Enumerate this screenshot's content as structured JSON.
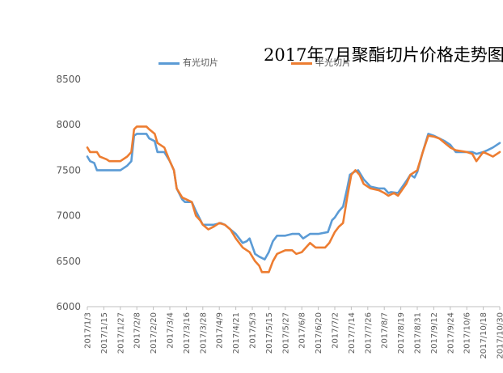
{
  "chart_data": {
    "type": "line",
    "title": "2017年7月聚酯切片价格走势图",
    "ylim": [
      6000,
      8500
    ],
    "yticks": [
      6000,
      6500,
      7000,
      7500,
      8000,
      8500
    ],
    "grid": false,
    "legend_position": "top",
    "x_tick_labels": [
      "2017/1/3",
      "2017/1/15",
      "2017/1/27",
      "2017/2/8",
      "2017/2/20",
      "2017/3/4",
      "2017/3/16",
      "2017/3/28",
      "2017/4/9",
      "2017/4/21",
      "2017/5/3",
      "2017/5/15",
      "2017/5/27",
      "2017/6/8",
      "2017/6/20",
      "2017/7/2",
      "2017/7/14",
      "2017/7/26",
      "2017/8/7",
      "2017/8/19",
      "2017/8/31",
      "2017/9/12",
      "2017/9/24",
      "2017/10/6",
      "2017/10/18",
      "2017/10/30"
    ],
    "series": [
      {
        "name": "有光切片",
        "color": "#5B9BD5",
        "points": [
          [
            "2017/1/3",
            7650
          ],
          [
            "2017/1/5",
            7600
          ],
          [
            "2017/1/8",
            7580
          ],
          [
            "2017/1/10",
            7500
          ],
          [
            "2017/1/27",
            7500
          ],
          [
            "2017/2/1",
            7550
          ],
          [
            "2017/2/4",
            7600
          ],
          [
            "2017/2/6",
            7880
          ],
          [
            "2017/2/8",
            7900
          ],
          [
            "2017/2/15",
            7900
          ],
          [
            "2017/2/17",
            7850
          ],
          [
            "2017/2/21",
            7820
          ],
          [
            "2017/2/23",
            7700
          ],
          [
            "2017/2/28",
            7700
          ],
          [
            "2017/3/4",
            7600
          ],
          [
            "2017/3/7",
            7500
          ],
          [
            "2017/3/9",
            7300
          ],
          [
            "2017/3/13",
            7180
          ],
          [
            "2017/3/15",
            7150
          ],
          [
            "2017/3/20",
            7150
          ],
          [
            "2017/3/23",
            7050
          ],
          [
            "2017/3/28",
            6900
          ],
          [
            "2017/4/1",
            6900
          ],
          [
            "2017/4/5",
            6900
          ],
          [
            "2017/4/10",
            6920
          ],
          [
            "2017/4/13",
            6900
          ],
          [
            "2017/4/21",
            6800
          ],
          [
            "2017/4/26",
            6700
          ],
          [
            "2017/4/29",
            6720
          ],
          [
            "2017/5/1",
            6750
          ],
          [
            "2017/5/5",
            6580
          ],
          [
            "2017/5/8",
            6550
          ],
          [
            "2017/5/12",
            6520
          ],
          [
            "2017/5/15",
            6600
          ],
          [
            "2017/5/18",
            6720
          ],
          [
            "2017/5/21",
            6780
          ],
          [
            "2017/5/27",
            6780
          ],
          [
            "2017/6/1",
            6800
          ],
          [
            "2017/6/6",
            6800
          ],
          [
            "2017/6/9",
            6750
          ],
          [
            "2017/6/14",
            6800
          ],
          [
            "2017/6/20",
            6800
          ],
          [
            "2017/6/27",
            6820
          ],
          [
            "2017/6/30",
            6950
          ],
          [
            "2017/7/2",
            6980
          ],
          [
            "2017/7/5",
            7050
          ],
          [
            "2017/7/8",
            7100
          ],
          [
            "2017/7/11",
            7300
          ],
          [
            "2017/7/13",
            7450
          ],
          [
            "2017/7/16",
            7480
          ],
          [
            "2017/7/19",
            7500
          ],
          [
            "2017/7/23",
            7400
          ],
          [
            "2017/7/28",
            7320
          ],
          [
            "2017/8/3",
            7300
          ],
          [
            "2017/8/7",
            7300
          ],
          [
            "2017/8/10",
            7250
          ],
          [
            "2017/8/12",
            7260
          ],
          [
            "2017/8/17",
            7250
          ],
          [
            "2017/8/23",
            7380
          ],
          [
            "2017/8/26",
            7450
          ],
          [
            "2017/8/29",
            7420
          ],
          [
            "2017/8/31",
            7480
          ],
          [
            "2017/9/4",
            7700
          ],
          [
            "2017/9/8",
            7900
          ],
          [
            "2017/9/12",
            7880
          ],
          [
            "2017/9/16",
            7850
          ],
          [
            "2017/9/20",
            7820
          ],
          [
            "2017/9/24",
            7780
          ],
          [
            "2017/9/28",
            7700
          ],
          [
            "2017/10/10",
            7700
          ],
          [
            "2017/10/13",
            7680
          ],
          [
            "2017/10/18",
            7700
          ],
          [
            "2017/10/21",
            7720
          ],
          [
            "2017/10/25",
            7750
          ],
          [
            "2017/10/30",
            7800
          ]
        ]
      },
      {
        "name": "半光切片",
        "color": "#ED7D31",
        "points": [
          [
            "2017/1/3",
            7750
          ],
          [
            "2017/1/5",
            7700
          ],
          [
            "2017/1/10",
            7700
          ],
          [
            "2017/1/12",
            7650
          ],
          [
            "2017/1/17",
            7620
          ],
          [
            "2017/1/19",
            7600
          ],
          [
            "2017/1/27",
            7600
          ],
          [
            "2017/2/1",
            7650
          ],
          [
            "2017/2/4",
            7700
          ],
          [
            "2017/2/6",
            7950
          ],
          [
            "2017/2/8",
            7980
          ],
          [
            "2017/2/15",
            7980
          ],
          [
            "2017/2/17",
            7950
          ],
          [
            "2017/2/21",
            7900
          ],
          [
            "2017/2/23",
            7800
          ],
          [
            "2017/2/28",
            7750
          ],
          [
            "2017/3/4",
            7600
          ],
          [
            "2017/3/7",
            7500
          ],
          [
            "2017/3/9",
            7300
          ],
          [
            "2017/3/13",
            7200
          ],
          [
            "2017/3/16",
            7180
          ],
          [
            "2017/3/20",
            7150
          ],
          [
            "2017/3/23",
            7000
          ],
          [
            "2017/3/26",
            6950
          ],
          [
            "2017/3/28",
            6900
          ],
          [
            "2017/4/1",
            6850
          ],
          [
            "2017/4/5",
            6880
          ],
          [
            "2017/4/9",
            6920
          ],
          [
            "2017/4/13",
            6900
          ],
          [
            "2017/4/17",
            6850
          ],
          [
            "2017/4/21",
            6750
          ],
          [
            "2017/4/26",
            6650
          ],
          [
            "2017/5/1",
            6600
          ],
          [
            "2017/5/5",
            6500
          ],
          [
            "2017/5/8",
            6450
          ],
          [
            "2017/5/10",
            6380
          ],
          [
            "2017/5/15",
            6380
          ],
          [
            "2017/5/18",
            6500
          ],
          [
            "2017/5/21",
            6580
          ],
          [
            "2017/5/27",
            6620
          ],
          [
            "2017/6/1",
            6620
          ],
          [
            "2017/6/4",
            6580
          ],
          [
            "2017/6/8",
            6600
          ],
          [
            "2017/6/11",
            6650
          ],
          [
            "2017/6/14",
            6700
          ],
          [
            "2017/6/18",
            6650
          ],
          [
            "2017/6/25",
            6650
          ],
          [
            "2017/6/28",
            6700
          ],
          [
            "2017/7/2",
            6820
          ],
          [
            "2017/7/5",
            6880
          ],
          [
            "2017/7/8",
            6920
          ],
          [
            "2017/7/11",
            7200
          ],
          [
            "2017/7/14",
            7450
          ],
          [
            "2017/7/17",
            7500
          ],
          [
            "2017/7/20",
            7450
          ],
          [
            "2017/7/23",
            7350
          ],
          [
            "2017/7/28",
            7300
          ],
          [
            "2017/8/3",
            7280
          ],
          [
            "2017/8/7",
            7250
          ],
          [
            "2017/8/10",
            7220
          ],
          [
            "2017/8/14",
            7250
          ],
          [
            "2017/8/17",
            7220
          ],
          [
            "2017/8/23",
            7350
          ],
          [
            "2017/8/26",
            7450
          ],
          [
            "2017/8/31",
            7500
          ],
          [
            "2017/9/4",
            7700
          ],
          [
            "2017/9/8",
            7880
          ],
          [
            "2017/9/12",
            7870
          ],
          [
            "2017/9/16",
            7850
          ],
          [
            "2017/9/20",
            7800
          ],
          [
            "2017/9/24",
            7750
          ],
          [
            "2017/9/28",
            7720
          ],
          [
            "2017/10/6",
            7700
          ],
          [
            "2017/10/10",
            7680
          ],
          [
            "2017/10/13",
            7600
          ],
          [
            "2017/10/18",
            7700
          ],
          [
            "2017/10/21",
            7680
          ],
          [
            "2017/10/25",
            7650
          ],
          [
            "2017/10/28",
            7680
          ],
          [
            "2017/10/30",
            7700
          ]
        ]
      }
    ]
  }
}
